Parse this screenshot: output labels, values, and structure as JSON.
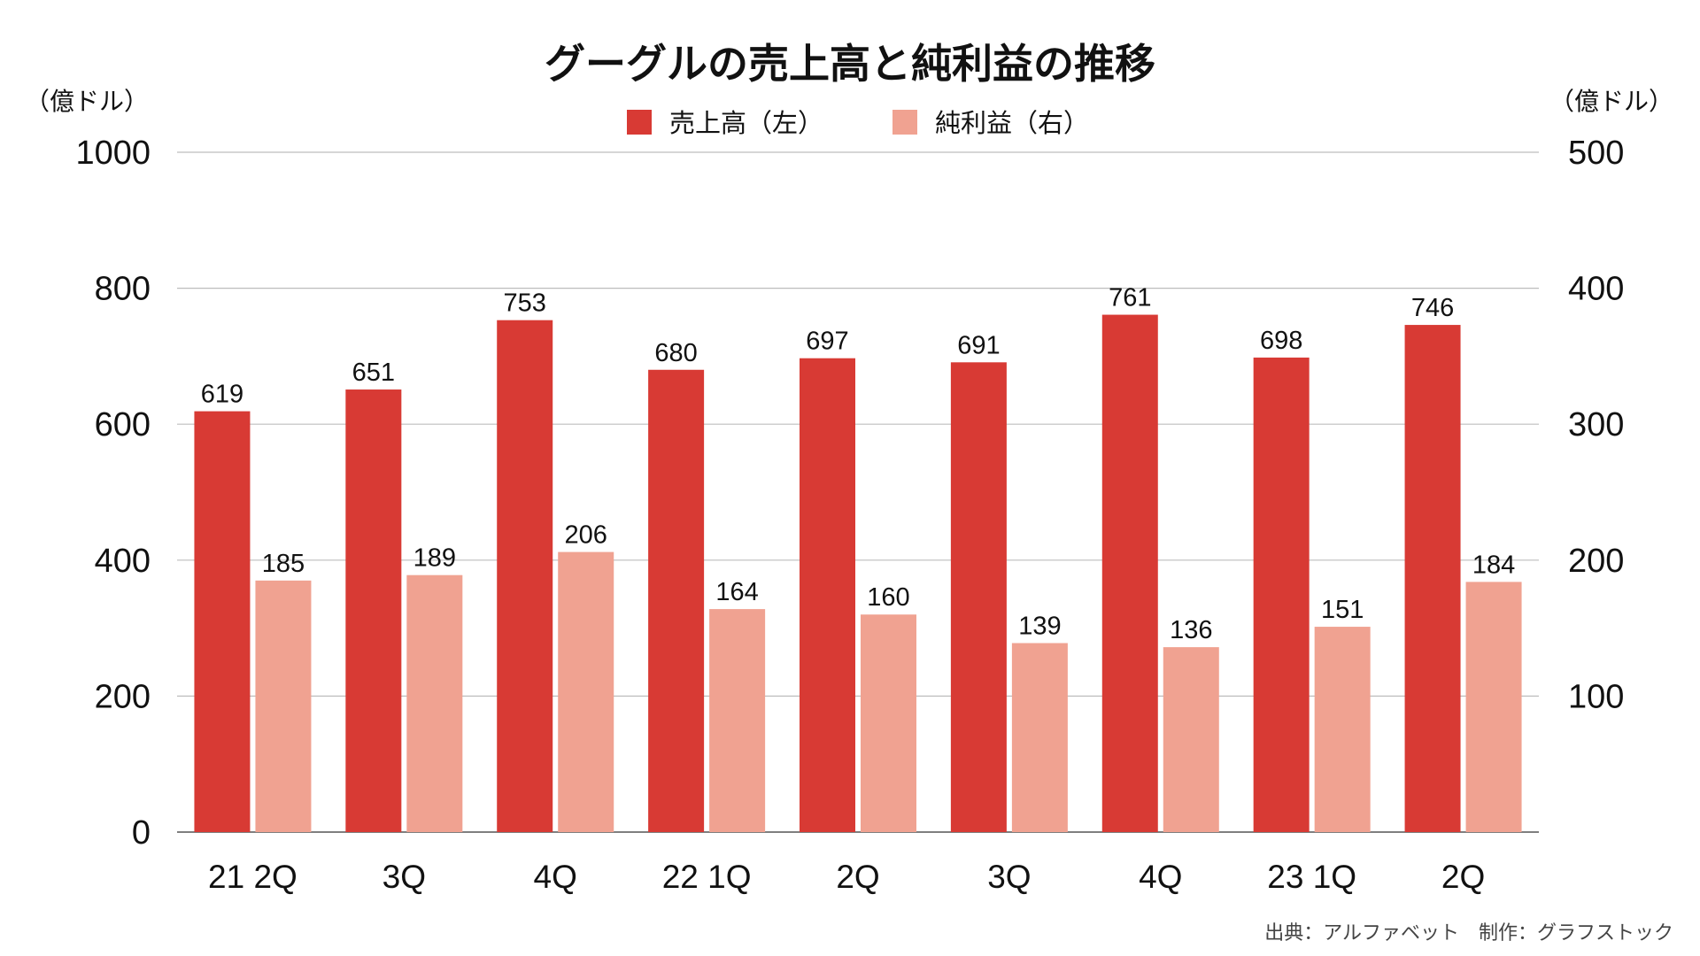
{
  "chart_data": {
    "type": "bar",
    "title": "グーグルの売上高と純利益の推移",
    "ylabel_left": "（億ドル）",
    "ylabel_right": "（億ドル）",
    "categories": [
      "21 2Q",
      "3Q",
      "4Q",
      "22 1Q",
      "2Q",
      "3Q",
      "4Q",
      "23 1Q",
      "2Q"
    ],
    "series": [
      {
        "name": "売上高（左）",
        "axis": "left",
        "color": "#d83a34",
        "values": [
          619,
          651,
          753,
          680,
          697,
          691,
          761,
          698,
          746
        ]
      },
      {
        "name": "純利益（右）",
        "axis": "right",
        "color": "#f0a291",
        "values": [
          185,
          189,
          206,
          164,
          160,
          139,
          136,
          151,
          184
        ]
      }
    ],
    "ylim_left": [
      0,
      1000
    ],
    "ylim_right": [
      0,
      500
    ],
    "yticks_left": [
      "0",
      "200",
      "400",
      "600",
      "800",
      "1000"
    ],
    "yticks_right": [
      "100",
      "200",
      "300",
      "400",
      "500"
    ],
    "grid": true,
    "legend_position": "top-center",
    "source": "出典：アルファベット　制作：グラフストック"
  }
}
